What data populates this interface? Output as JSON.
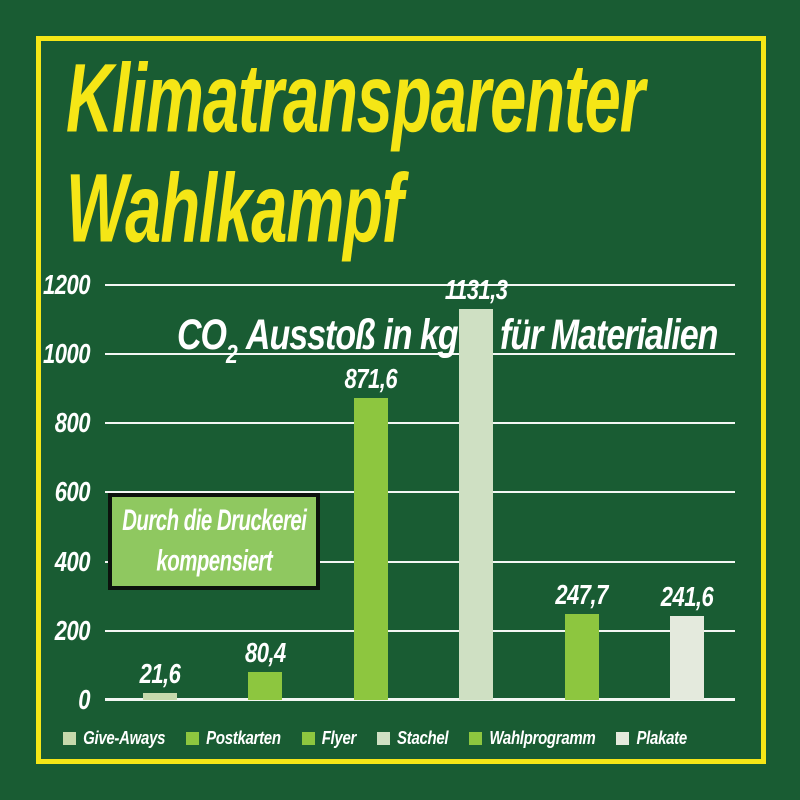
{
  "page": {
    "title_line1": "Klimatransparenter",
    "title_line2": "Wahlkampf"
  },
  "colors": {
    "background": "#195c33",
    "frame_yellow": "#f5e616",
    "text_white": "#ffffff",
    "note_bg": "#8fc860",
    "note_border": "#0c120d"
  },
  "chart_data": {
    "type": "bar",
    "title": "CO₂ Ausstoß in kg für Materialien",
    "title_parts": {
      "co": "CO",
      "sub": "2",
      "left_rest": " Ausstoß in kg",
      "right": "für Materialien"
    },
    "categories": [
      "Give-Aways",
      "Postkarten",
      "Flyer",
      "Stachel",
      "Wahlprogramm",
      "Plakate"
    ],
    "values": [
      21.6,
      80.4,
      871.6,
      1131.3,
      247.7,
      241.6
    ],
    "value_labels": [
      "21,6",
      "80,4",
      "871,6",
      "1131,3",
      "247,7",
      "241,6"
    ],
    "bar_colors": [
      "#c6d9ac",
      "#8dc63f",
      "#8dc63f",
      "#cfe0c3",
      "#8dc63f",
      "#e4eadd"
    ],
    "ylabel": "",
    "xlabel": "",
    "ylim": [
      0,
      1200
    ],
    "yticks": [
      0,
      200,
      400,
      600,
      800,
      1000,
      1200
    ],
    "grid": true,
    "legend_position": "bottom",
    "annotation": {
      "line1": "Durch die Druckerei",
      "line2": "kompensiert"
    }
  }
}
